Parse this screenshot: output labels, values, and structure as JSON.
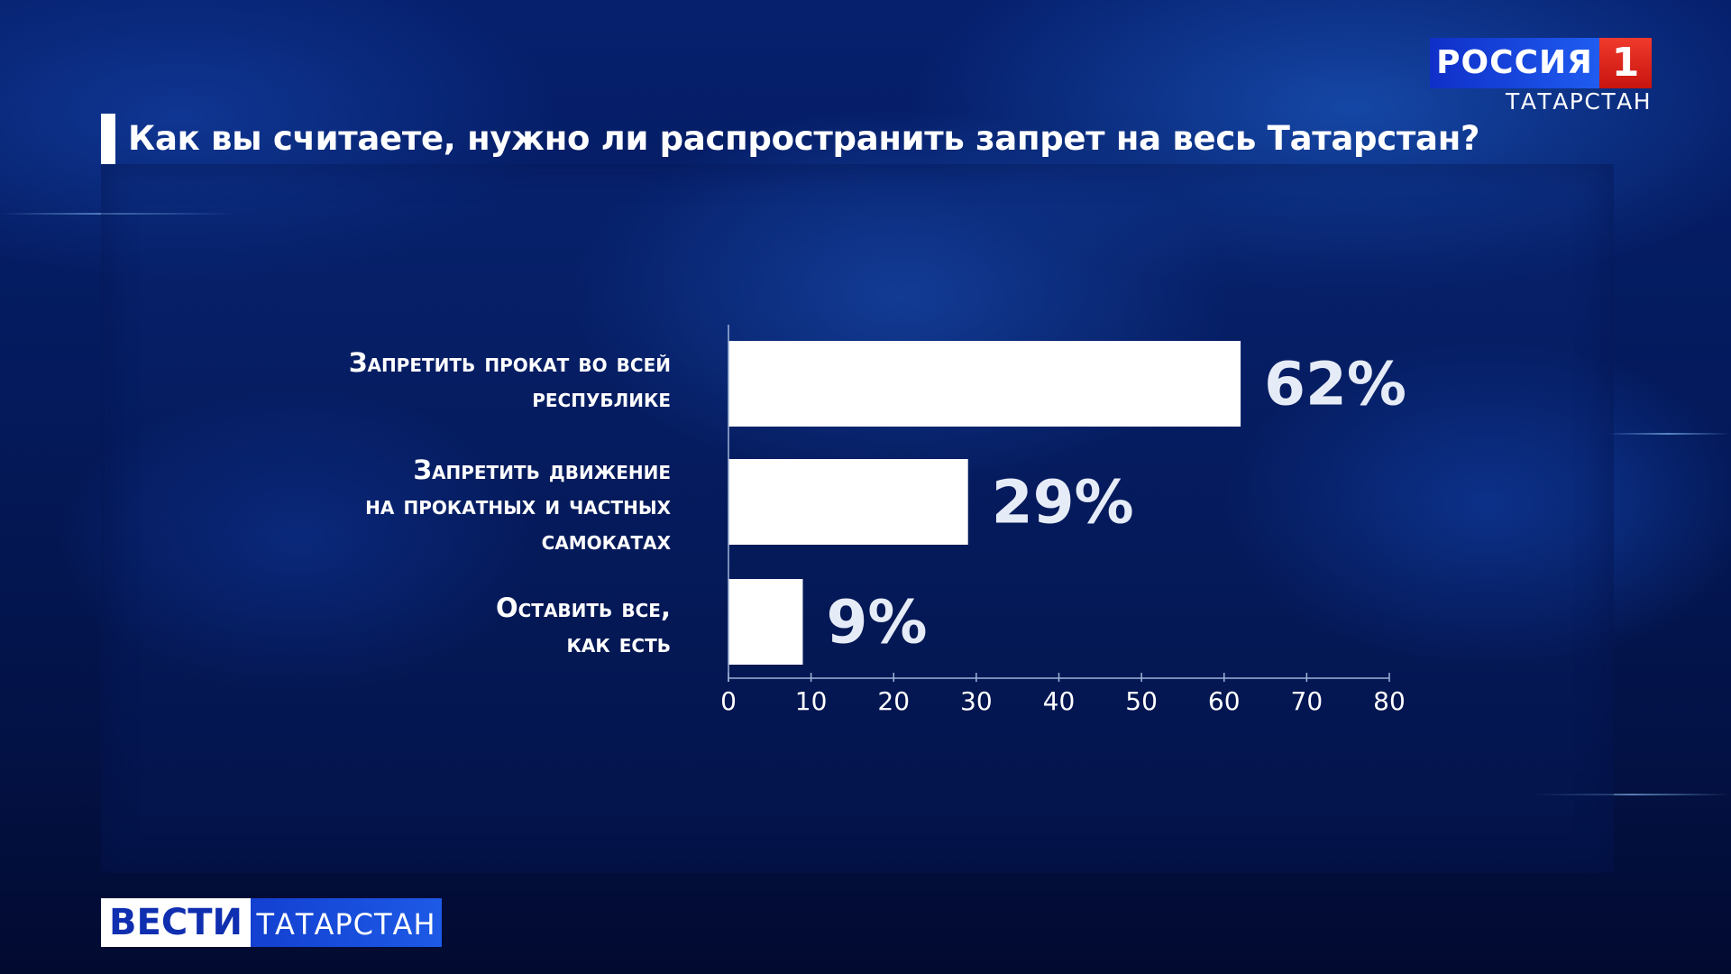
{
  "header": {
    "question": "Как вы считаете, нужно ли распространить запрет на весь Татарстан?"
  },
  "channel_logo": {
    "name": "РОССИЯ",
    "number": "1",
    "region": "ТАТАРСТАН"
  },
  "program_logo": {
    "name": "ВЕСТИ",
    "region": "ТАТАРСТАН"
  },
  "chart_data": {
    "type": "bar",
    "orientation": "horizontal",
    "title": "Как вы считаете, нужно ли распространить запрет на весь Татарстан?",
    "categories": [
      "Запретить прокат во всей\nреспублике",
      "Запретить движение\nна прокатных и частных\nсамокатах",
      "Оставить все,\nкак есть"
    ],
    "values": [
      62,
      29,
      9
    ],
    "value_labels": [
      "62%",
      "29%",
      "9%"
    ],
    "xlim": [
      0,
      80
    ],
    "x_ticks": [
      0,
      10,
      20,
      30,
      40,
      50,
      60,
      70,
      80
    ],
    "x_tick_labels": [
      "0",
      "10",
      "20",
      "30",
      "40",
      "50",
      "60",
      "70",
      "80"
    ],
    "grid": false,
    "legend": "none",
    "bar_color": "#ffffff",
    "label_color": "#ffffff",
    "value_label_color": "#e6ecf7"
  }
}
